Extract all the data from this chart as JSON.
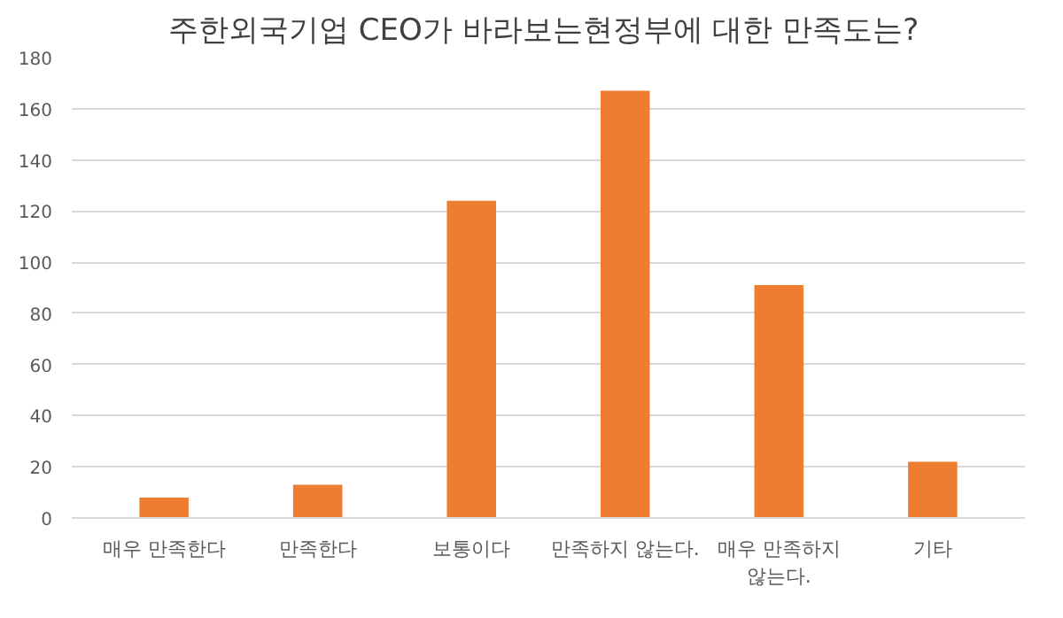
{
  "chart_data": {
    "type": "bar",
    "title": "주한외국기업 CEO가 바라보는현정부에 대한  만족도는?",
    "categories": [
      "매우 만족한다",
      "만족한다",
      "보통이다",
      "만족하지 않는다.",
      "매우 만족하지 않는다.",
      "기타"
    ],
    "values": [
      8,
      13,
      124,
      167,
      91,
      22
    ],
    "color": "#ed7d31",
    "ylim": [
      0,
      180
    ],
    "yticks": [
      0,
      20,
      40,
      60,
      80,
      100,
      120,
      140,
      160,
      180
    ],
    "grid": "y"
  }
}
